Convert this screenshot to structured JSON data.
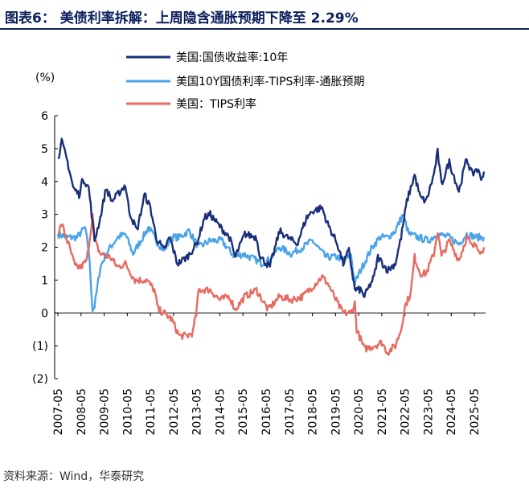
{
  "header": {
    "title": "图表6： 美债利率拆解：上周隐含通胀预期下降至 2.29%",
    "source": "资料来源：Wind，华泰研究"
  },
  "chart_data": {
    "type": "line",
    "ylabel": "(%)",
    "ylim": [
      -2,
      6
    ],
    "yticks": [
      "6",
      "5",
      "4",
      "3",
      "2",
      "1",
      "0",
      "(1)",
      "(2)"
    ],
    "ytick_values": [
      6,
      5,
      4,
      3,
      2,
      1,
      0,
      -1,
      -2
    ],
    "xlim": [
      "2007-05",
      "2025-10"
    ],
    "xticks": [
      "2007-05",
      "2008-05",
      "2009-05",
      "2010-05",
      "2011-05",
      "2012-05",
      "2013-05",
      "2014-05",
      "2015-05",
      "2016-05",
      "2017-05",
      "2018-05",
      "2019-05",
      "2020-05",
      "2021-05",
      "2022-05",
      "2023-05",
      "2024-05",
      "2025-05"
    ],
    "legend_position": "top",
    "series": [
      {
        "name": "美国:国债收益率:10年",
        "color": "#1a2f7a",
        "points": [
          [
            "2007-05",
            4.7
          ],
          [
            "2007-07",
            5.2
          ],
          [
            "2007-10",
            4.6
          ],
          [
            "2008-01",
            3.8
          ],
          [
            "2008-04",
            3.6
          ],
          [
            "2008-06",
            4.1
          ],
          [
            "2008-09",
            3.8
          ],
          [
            "2008-12",
            2.2
          ],
          [
            "2009-03",
            2.9
          ],
          [
            "2009-06",
            3.8
          ],
          [
            "2009-09",
            3.4
          ],
          [
            "2009-12",
            3.6
          ],
          [
            "2010-04",
            3.9
          ],
          [
            "2010-06",
            3.1
          ],
          [
            "2010-10",
            2.5
          ],
          [
            "2011-02",
            3.6
          ],
          [
            "2011-05",
            3.2
          ],
          [
            "2011-08",
            2.3
          ],
          [
            "2011-12",
            1.9
          ],
          [
            "2012-03",
            2.3
          ],
          [
            "2012-07",
            1.5
          ],
          [
            "2012-12",
            1.7
          ],
          [
            "2013-05",
            2.1
          ],
          [
            "2013-09",
            2.9
          ],
          [
            "2013-12",
            3.0
          ],
          [
            "2014-04",
            2.7
          ],
          [
            "2014-10",
            2.3
          ],
          [
            "2015-01",
            1.7
          ],
          [
            "2015-06",
            2.4
          ],
          [
            "2015-12",
            2.3
          ],
          [
            "2016-02",
            1.7
          ],
          [
            "2016-07",
            1.4
          ],
          [
            "2016-12",
            2.5
          ],
          [
            "2017-04",
            2.3
          ],
          [
            "2017-09",
            2.1
          ],
          [
            "2018-02",
            2.9
          ],
          [
            "2018-05",
            3.1
          ],
          [
            "2018-10",
            3.2
          ],
          [
            "2019-01",
            2.7
          ],
          [
            "2019-06",
            2.1
          ],
          [
            "2019-09",
            1.5
          ],
          [
            "2019-12",
            1.9
          ],
          [
            "2020-03",
            0.7
          ],
          [
            "2020-06",
            0.7
          ],
          [
            "2020-08",
            0.5
          ],
          [
            "2021-01",
            1.1
          ],
          [
            "2021-03",
            1.7
          ],
          [
            "2021-08",
            1.3
          ],
          [
            "2021-12",
            1.5
          ],
          [
            "2022-03",
            2.3
          ],
          [
            "2022-06",
            3.4
          ],
          [
            "2022-10",
            4.2
          ],
          [
            "2023-01",
            3.5
          ],
          [
            "2023-04",
            3.4
          ],
          [
            "2023-08",
            4.2
          ],
          [
            "2023-10",
            4.9
          ],
          [
            "2023-12",
            3.9
          ],
          [
            "2024-04",
            4.6
          ],
          [
            "2024-09",
            3.7
          ],
          [
            "2025-01",
            4.7
          ],
          [
            "2025-04",
            4.2
          ],
          [
            "2025-06",
            4.4
          ],
          [
            "2025-09",
            4.1
          ],
          [
            "2025-10",
            4.3
          ]
        ]
      },
      {
        "name": "美国10Y国债利率-TIPS利率-通胀预期",
        "color": "#4aa3e8",
        "points": [
          [
            "2007-05",
            2.4
          ],
          [
            "2007-10",
            2.3
          ],
          [
            "2008-03",
            2.3
          ],
          [
            "2008-07",
            2.6
          ],
          [
            "2008-09",
            1.9
          ],
          [
            "2008-11",
            0.1
          ],
          [
            "2008-12",
            0.2
          ],
          [
            "2009-03",
            1.4
          ],
          [
            "2009-07",
            1.9
          ],
          [
            "2009-12",
            2.3
          ],
          [
            "2010-04",
            2.4
          ],
          [
            "2010-08",
            1.8
          ],
          [
            "2010-12",
            2.2
          ],
          [
            "2011-04",
            2.6
          ],
          [
            "2011-08",
            2.2
          ],
          [
            "2011-12",
            1.9
          ],
          [
            "2012-04",
            2.3
          ],
          [
            "2012-08",
            2.3
          ],
          [
            "2013-01",
            2.5
          ],
          [
            "2013-06",
            2.0
          ],
          [
            "2013-12",
            2.2
          ],
          [
            "2014-06",
            2.2
          ],
          [
            "2014-10",
            1.9
          ],
          [
            "2015-01",
            1.7
          ],
          [
            "2015-05",
            1.8
          ],
          [
            "2015-12",
            1.6
          ],
          [
            "2016-02",
            1.5
          ],
          [
            "2016-06",
            1.6
          ],
          [
            "2016-12",
            2.0
          ],
          [
            "2017-06",
            1.8
          ],
          [
            "2017-12",
            2.0
          ],
          [
            "2018-05",
            2.2
          ],
          [
            "2018-12",
            1.7
          ],
          [
            "2019-06",
            1.7
          ],
          [
            "2019-10",
            1.6
          ],
          [
            "2020-01",
            1.8
          ],
          [
            "2020-03",
            0.9
          ],
          [
            "2020-06",
            1.3
          ],
          [
            "2020-12",
            2.0
          ],
          [
            "2021-04",
            2.3
          ],
          [
            "2021-08",
            2.3
          ],
          [
            "2021-12",
            2.5
          ],
          [
            "2022-04",
            3.0
          ],
          [
            "2022-07",
            2.4
          ],
          [
            "2022-12",
            2.3
          ],
          [
            "2023-05",
            2.2
          ],
          [
            "2023-10",
            2.4
          ],
          [
            "2024-04",
            2.3
          ],
          [
            "2024-09",
            2.1
          ],
          [
            "2025-01",
            2.4
          ],
          [
            "2025-06",
            2.3
          ],
          [
            "2025-10",
            2.3
          ]
        ]
      },
      {
        "name": "美国：TIPS利率",
        "color": "#e86a60",
        "points": [
          [
            "2007-05",
            2.4
          ],
          [
            "2007-07",
            2.7
          ],
          [
            "2007-11",
            2.0
          ],
          [
            "2008-02",
            1.4
          ],
          [
            "2008-05",
            1.4
          ],
          [
            "2008-08",
            1.6
          ],
          [
            "2008-10",
            2.5
          ],
          [
            "2008-11",
            3.0
          ],
          [
            "2008-12",
            2.2
          ],
          [
            "2009-03",
            1.8
          ],
          [
            "2009-08",
            1.7
          ],
          [
            "2009-12",
            1.4
          ],
          [
            "2010-04",
            1.5
          ],
          [
            "2010-09",
            1.0
          ],
          [
            "2010-12",
            1.0
          ],
          [
            "2011-03",
            1.0
          ],
          [
            "2011-07",
            0.7
          ],
          [
            "2011-09",
            0.1
          ],
          [
            "2011-12",
            0.0
          ],
          [
            "2012-04",
            -0.2
          ],
          [
            "2012-08",
            -0.7
          ],
          [
            "2012-12",
            -0.7
          ],
          [
            "2013-03",
            -0.6
          ],
          [
            "2013-05",
            0.1
          ],
          [
            "2013-06",
            0.7
          ],
          [
            "2013-09",
            0.7
          ],
          [
            "2013-12",
            0.7
          ],
          [
            "2014-05",
            0.4
          ],
          [
            "2014-10",
            0.5
          ],
          [
            "2015-01",
            0.1
          ],
          [
            "2015-06",
            0.5
          ],
          [
            "2015-12",
            0.7
          ],
          [
            "2016-06",
            0.1
          ],
          [
            "2016-12",
            0.5
          ],
          [
            "2017-06",
            0.4
          ],
          [
            "2017-12",
            0.5
          ],
          [
            "2018-05",
            0.8
          ],
          [
            "2018-10",
            1.1
          ],
          [
            "2019-01",
            0.9
          ],
          [
            "2019-06",
            0.3
          ],
          [
            "2019-09",
            0.0
          ],
          [
            "2020-01",
            0.0
          ],
          [
            "2020-03",
            0.3
          ],
          [
            "2020-04",
            -0.5
          ],
          [
            "2020-08",
            -1.1
          ],
          [
            "2021-01",
            -1.0
          ],
          [
            "2021-05",
            -0.9
          ],
          [
            "2021-08",
            -1.2
          ],
          [
            "2021-12",
            -1.0
          ],
          [
            "2022-03",
            -0.5
          ],
          [
            "2022-05",
            0.2
          ],
          [
            "2022-08",
            0.6
          ],
          [
            "2022-10",
            1.7
          ],
          [
            "2023-01",
            1.2
          ],
          [
            "2023-04",
            1.2
          ],
          [
            "2023-08",
            1.8
          ],
          [
            "2023-10",
            2.5
          ],
          [
            "2023-12",
            1.7
          ],
          [
            "2024-04",
            2.2
          ],
          [
            "2024-09",
            1.6
          ],
          [
            "2025-01",
            2.3
          ],
          [
            "2025-04",
            2.0
          ],
          [
            "2025-06",
            2.1
          ],
          [
            "2025-09",
            1.8
          ],
          [
            "2025-10",
            2.0
          ]
        ]
      }
    ]
  }
}
